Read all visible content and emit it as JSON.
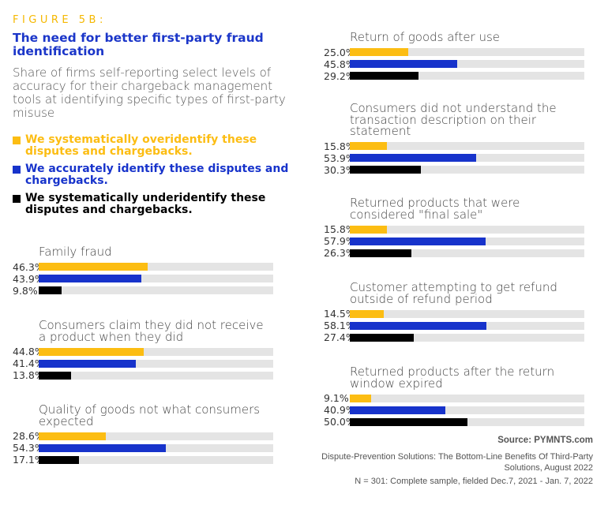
{
  "header": {
    "figure_label": "FIGURE 5B:",
    "title": "The need for better first-party fraud identification",
    "subtitle": "Share of firms self-reporting select levels of accuracy for their chargeback management tools at identifying specific types of first-party misuse"
  },
  "colors": {
    "over": "#fcbd13",
    "accurate": "#1733cb",
    "under": "#000000",
    "track": "#e4e4e4"
  },
  "chart_data": {
    "type": "bar",
    "orientation": "horizontal",
    "title": "The need for better first-party fraud identification",
    "xlim": [
      0,
      100
    ],
    "unit": "%",
    "legend": [
      {
        "key": "over",
        "label": "We systematically overidentify these disputes and chargebacks."
      },
      {
        "key": "accurate",
        "label": "We accurately identify these disputes and chargebacks."
      },
      {
        "key": "under",
        "label": "We systematically underidentify these disputes and chargebacks."
      }
    ],
    "groups": [
      {
        "category": "Family fraud",
        "values": [
          46.3,
          43.9,
          9.8
        ],
        "labels": [
          "46.3%",
          "43.9%",
          "9.8%"
        ]
      },
      {
        "category": "Consumers claim they did not receive a product when they did",
        "values": [
          44.8,
          41.4,
          13.8
        ],
        "labels": [
          "44.8%",
          "41.4%",
          "13.8%"
        ]
      },
      {
        "category": "Quality of goods not what consumers expected",
        "values": [
          28.6,
          54.3,
          17.1
        ],
        "labels": [
          "28.6%",
          "54.3%",
          "17.1%"
        ]
      },
      {
        "category": "Return of goods after use",
        "values": [
          25.0,
          45.8,
          29.2
        ],
        "labels": [
          "25.0%",
          "45.8%",
          "29.2%"
        ]
      },
      {
        "category": "Consumers did not understand the transaction description on their statement",
        "values": [
          15.8,
          53.9,
          30.3
        ],
        "labels": [
          "15.8%",
          "53.9%",
          "30.3%"
        ]
      },
      {
        "category": "Returned products that were considered \"final sale\"",
        "values": [
          15.8,
          57.9,
          26.3
        ],
        "labels": [
          "15.8%",
          "57.9%",
          "26.3%"
        ]
      },
      {
        "category": "Customer attempting to get refund outside of refund period",
        "values": [
          14.5,
          58.1,
          27.4
        ],
        "labels": [
          "14.5%",
          "58.1%",
          "27.4%"
        ]
      },
      {
        "category": "Returned products after the return window expired",
        "values": [
          9.1,
          40.9,
          50.0
        ],
        "labels": [
          "9.1%",
          "40.9%",
          "50.0%"
        ]
      }
    ]
  },
  "footer": {
    "source": "Source: PYMNTS.com",
    "citation": "Dispute-Prevention Solutions: The Bottom-Line Benefits Of Third-Party Solutions, August 2022",
    "sample": "N = 301: Complete sample, fielded Dec.7, 2021 - Jan. 7, 2022"
  }
}
